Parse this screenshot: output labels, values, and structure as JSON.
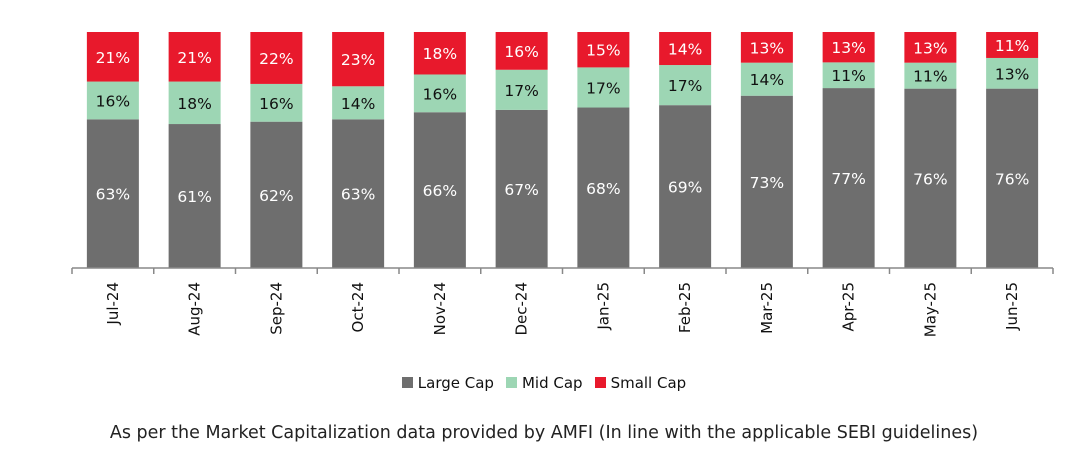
{
  "chart_data": {
    "type": "bar",
    "stacked": true,
    "categories": [
      "Jul-24",
      "Aug-24",
      "Sep-24",
      "Oct-24",
      "Nov-24",
      "Dec-24",
      "Jan-25",
      "Feb-25",
      "Mar-25",
      "Apr-25",
      "May-25",
      "Jun-25"
    ],
    "series": [
      {
        "name": "Large Cap",
        "color": "#6e6e6e",
        "values": [
          63,
          61,
          62,
          63,
          66,
          67,
          68,
          69,
          73,
          77,
          76,
          76
        ]
      },
      {
        "name": "Mid Cap",
        "color": "#9dd6b4",
        "values": [
          16,
          18,
          16,
          14,
          16,
          17,
          17,
          17,
          14,
          11,
          11,
          13
        ]
      },
      {
        "name": "Small Cap",
        "color": "#e8192c",
        "values": [
          21,
          21,
          22,
          23,
          18,
          16,
          15,
          14,
          13,
          13,
          13,
          11
        ]
      }
    ],
    "value_suffix": "%",
    "legend_position": "bottom",
    "grid": false,
    "ylim": [
      0,
      100
    ]
  },
  "footnote": "As per the Market Capitalization data provided by AMFI (In line with the applicable SEBI guidelines)"
}
